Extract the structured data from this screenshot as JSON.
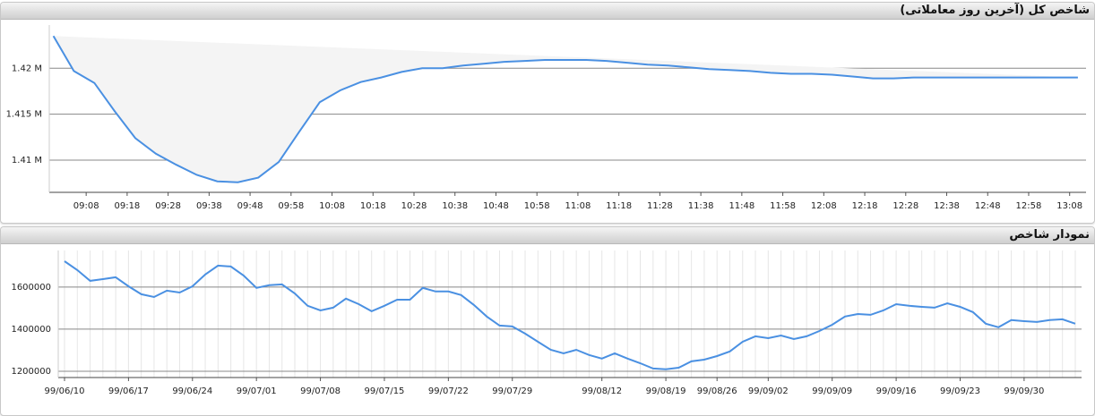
{
  "chart_data": [
    {
      "type": "line",
      "title": "شاخص کل (آخرین روز معاملاتی)",
      "x": [
        "09:00",
        "09:05",
        "09:10",
        "09:15",
        "09:20",
        "09:25",
        "09:30",
        "09:35",
        "09:40",
        "09:45",
        "09:50",
        "09:55",
        "10:00",
        "10:05",
        "10:10",
        "10:15",
        "10:20",
        "10:25",
        "10:30",
        "10:35",
        "10:40",
        "10:45",
        "10:50",
        "10:55",
        "11:00",
        "11:05",
        "11:10",
        "11:15",
        "11:20",
        "11:25",
        "11:30",
        "11:35",
        "11:40",
        "11:45",
        "11:50",
        "11:55",
        "12:00",
        "12:05",
        "12:10",
        "12:15",
        "12:20",
        "12:25",
        "12:30",
        "12:35",
        "12:40",
        "12:45",
        "12:50",
        "12:55",
        "13:00",
        "13:05",
        "13:10"
      ],
      "values": [
        1423500,
        1419700,
        1418400,
        1415300,
        1412400,
        1410700,
        1409500,
        1408400,
        1407700,
        1407600,
        1408100,
        1409800,
        1413100,
        1416300,
        1417600,
        1418500,
        1419000,
        1419600,
        1420000,
        1420000,
        1420300,
        1420500,
        1420700,
        1420800,
        1420900,
        1420900,
        1420900,
        1420800,
        1420600,
        1420400,
        1420300,
        1420100,
        1419900,
        1419800,
        1419700,
        1419500,
        1419400,
        1419400,
        1419300,
        1419100,
        1418900,
        1418900,
        1419000,
        1419000,
        1419000,
        1419000,
        1419000,
        1419000,
        1419000,
        1419000,
        1419000
      ],
      "color": "#4a90e2",
      "area": true,
      "grid": true,
      "xlim": [
        "08:59",
        "13:12"
      ],
      "xticks": [
        "09:08",
        "09:18",
        "09:28",
        "09:38",
        "09:48",
        "09:58",
        "10:08",
        "10:18",
        "10:28",
        "10:38",
        "10:48",
        "10:58",
        "11:08",
        "11:18",
        "11:28",
        "11:38",
        "11:48",
        "11:58",
        "12:08",
        "12:18",
        "12:28",
        "12:38",
        "12:48",
        "12:58",
        "13:08"
      ],
      "ylim": [
        1406500,
        1424700
      ],
      "yticks": [
        {
          "value": 1410000,
          "label": "1.41 M"
        },
        {
          "value": 1415000,
          "label": "1.415 M"
        },
        {
          "value": 1420000,
          "label": "1.42 M"
        }
      ]
    },
    {
      "type": "line",
      "title": "نمودار شاخص",
      "categories": [
        "99/06/10",
        null,
        null,
        null,
        null,
        "99/06/17",
        null,
        null,
        null,
        null,
        "99/06/24",
        null,
        null,
        null,
        null,
        "99/07/01",
        null,
        null,
        null,
        null,
        "99/07/08",
        null,
        null,
        null,
        null,
        "99/07/15",
        null,
        null,
        null,
        null,
        "99/07/22",
        null,
        null,
        null,
        null,
        "99/07/29",
        null,
        null,
        null,
        null,
        null,
        null,
        "99/08/12",
        null,
        null,
        null,
        null,
        "99/08/19",
        null,
        null,
        null,
        "99/08/26",
        null,
        null,
        null,
        "99/09/02",
        null,
        null,
        null,
        null,
        "99/09/09",
        null,
        null,
        null,
        null,
        "99/09/16",
        null,
        null,
        null,
        null,
        "99/09/23",
        null,
        null,
        null,
        null,
        "99/09/30",
        null,
        null,
        null,
        null
      ],
      "values": [
        1723000,
        1681000,
        1630000,
        1638000,
        1647000,
        1604000,
        1566000,
        1553000,
        1583000,
        1574000,
        1604000,
        1660000,
        1702000,
        1698000,
        1655000,
        1596000,
        1609000,
        1613000,
        1570000,
        1511000,
        1489000,
        1502000,
        1545000,
        1519000,
        1485000,
        1511000,
        1540000,
        1540000,
        1596000,
        1579000,
        1579000,
        1562000,
        1515000,
        1460000,
        1417000,
        1413000,
        1379000,
        1340000,
        1302000,
        1285000,
        1302000,
        1277000,
        1260000,
        1285000,
        1260000,
        1238000,
        1213000,
        1209000,
        1217000,
        1247000,
        1255000,
        1272000,
        1294000,
        1340000,
        1366000,
        1357000,
        1370000,
        1353000,
        1366000,
        1391000,
        1421000,
        1460000,
        1472000,
        1468000,
        1489000,
        1519000,
        1511000,
        1506000,
        1502000,
        1523000,
        1506000,
        1481000,
        1426000,
        1409000,
        1443000,
        1438000,
        1434000,
        1443000,
        1447000,
        1426000
      ],
      "color": "#4a90e2",
      "grid": true,
      "vgrid": true,
      "ylim": [
        1170000,
        1774000
      ],
      "yticks": [
        1200000,
        1400000,
        1600000
      ]
    }
  ]
}
